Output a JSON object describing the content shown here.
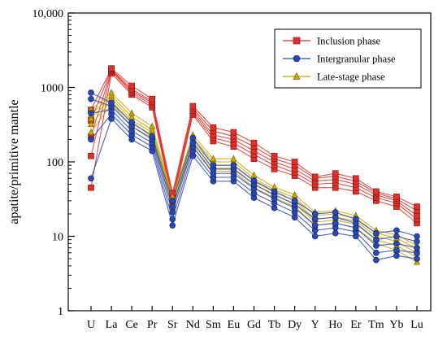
{
  "chart_data": {
    "type": "line",
    "title": "",
    "ylabel": "apatite/primitive mantle",
    "xlabel": "",
    "yscale": "log",
    "ylim": [
      1,
      10000
    ],
    "yticks": [
      {
        "value": 1,
        "label": "1"
      },
      {
        "value": 10,
        "label": "10"
      },
      {
        "value": 100,
        "label": "100"
      },
      {
        "value": 1000,
        "label": "1000"
      },
      {
        "value": 10000,
        "label": "10,000"
      }
    ],
    "categories": [
      "U",
      "La",
      "Ce",
      "Pr",
      "Sr",
      "Nd",
      "Sm",
      "Eu",
      "Gd",
      "Tb",
      "Dy",
      "Y",
      "Ho",
      "Er",
      "Tm",
      "Yb",
      "Lu"
    ],
    "legend_position": "top-right",
    "grid": false,
    "series": [
      {
        "name": "Inclusion phase",
        "color": "#e0302a",
        "marker": "square",
        "values": [
          [
            45,
            120,
            220,
            360,
            500
          ],
          [
            1550,
            1650,
            1700,
            1750,
            1800
          ],
          [
            800,
            850,
            900,
            950,
            1050
          ],
          [
            540,
            580,
            620,
            650,
            700
          ],
          [
            28,
            30,
            33,
            35,
            38
          ],
          [
            430,
            460,
            490,
            520,
            560
          ],
          [
            190,
            210,
            230,
            260,
            290
          ],
          [
            160,
            180,
            200,
            220,
            250
          ],
          [
            110,
            125,
            140,
            160,
            180
          ],
          [
            80,
            90,
            100,
            110,
            120
          ],
          [
            65,
            72,
            80,
            90,
            100
          ],
          [
            45,
            50,
            55,
            60,
            63
          ],
          [
            45,
            52,
            58,
            64,
            70
          ],
          [
            40,
            45,
            50,
            55,
            60
          ],
          [
            30,
            33,
            36,
            38,
            40
          ],
          [
            25,
            28,
            30,
            32,
            34
          ],
          [
            15,
            17,
            19,
            22,
            25
          ]
        ]
      },
      {
        "name": "Intergranular phase",
        "color": "#2a48b4",
        "marker": "circle",
        "values": [
          [
            60,
            200,
            450,
            700,
            850
          ],
          [
            380,
            440,
            500,
            560,
            620
          ],
          [
            200,
            230,
            260,
            300,
            340
          ],
          [
            140,
            160,
            180,
            200,
            220
          ],
          [
            14,
            17,
            21,
            25,
            30
          ],
          [
            120,
            140,
            160,
            180,
            210
          ],
          [
            55,
            62,
            70,
            80,
            90
          ],
          [
            55,
            62,
            70,
            80,
            90
          ],
          [
            33,
            38,
            44,
            50,
            56
          ],
          [
            24,
            28,
            32,
            36,
            40
          ],
          [
            18,
            21,
            24,
            27,
            30
          ],
          [
            10,
            12,
            14,
            17,
            20
          ],
          [
            11,
            13,
            15,
            18,
            21
          ],
          [
            10,
            11.5,
            13,
            15,
            17
          ],
          [
            4.8,
            6,
            7.5,
            9,
            11
          ],
          [
            5.5,
            6.5,
            8,
            10,
            12
          ],
          [
            5,
            6,
            7,
            8.5,
            10
          ]
        ]
      },
      {
        "name": "Late-stage phase",
        "color": "#c8a800",
        "marker": "triangle",
        "values": [
          [
            250,
            320,
            380,
            430,
            500
          ],
          [
            600,
            660,
            720,
            780,
            850
          ],
          [
            300,
            330,
            360,
            400,
            450
          ],
          [
            210,
            230,
            250,
            270,
            300
          ],
          [
            24,
            27,
            30,
            32,
            34
          ],
          [
            160,
            175,
            190,
            210,
            230
          ],
          [
            75,
            82,
            90,
            100,
            110
          ],
          [
            75,
            82,
            90,
            100,
            110
          ],
          [
            45,
            50,
            55,
            60,
            66
          ],
          [
            33,
            36,
            39,
            42,
            46
          ],
          [
            25,
            27.5,
            30,
            33,
            36
          ],
          [
            14,
            15.5,
            17,
            19,
            21
          ],
          [
            15,
            16.5,
            18,
            20,
            22
          ],
          [
            13,
            14.5,
            16,
            17.5,
            19
          ],
          [
            8,
            9,
            10,
            11,
            12
          ],
          [
            6.5,
            7.5,
            8.5,
            9.5,
            10.5
          ],
          [
            4.5,
            5.2,
            6,
            6.8,
            7.5
          ]
        ]
      }
    ]
  }
}
